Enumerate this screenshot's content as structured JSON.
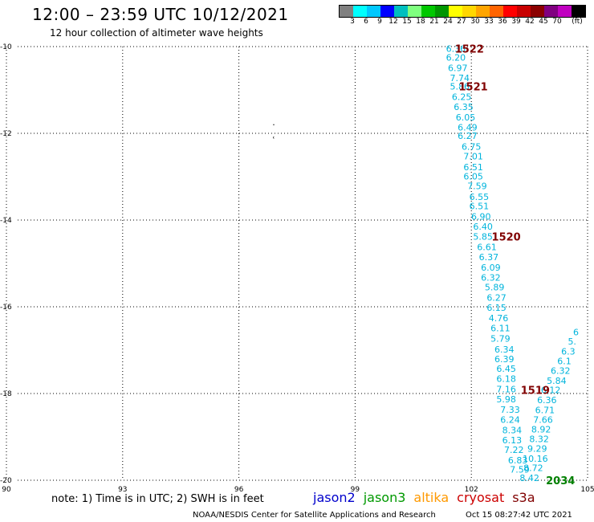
{
  "header": {
    "title": "12:00 – 23:59 UTC 10/12/2021",
    "subtitle": "12 hour collection of altimeter wave heights"
  },
  "colorbar": {
    "colors": [
      "#808080",
      "#00ffff",
      "#00c8ff",
      "#0000ff",
      "#00bfbf",
      "#7fff7f",
      "#00c800",
      "#009600",
      "#ffff00",
      "#ffd700",
      "#ffa500",
      "#ff6400",
      "#ff0000",
      "#c80000",
      "#8b0000",
      "#800080",
      "#c000c0",
      "#000000"
    ],
    "labels": [
      "3",
      "6",
      "9",
      "12",
      "15",
      "18",
      "21",
      "24",
      "27",
      "30",
      "33",
      "36",
      "39",
      "42",
      "45",
      "70",
      "(ft)"
    ]
  },
  "footer": {
    "note": "note: 1) Time is in UTC; 2) SWH is in feet",
    "credit": "NOAA/NESDIS Center for Satellite Applications and Research",
    "timestamp": "Oct 15 08:27:42 UTC 2021"
  },
  "satellites": [
    {
      "name": "jason2",
      "color": "#0000cc"
    },
    {
      "name": "jason3",
      "color": "#009900"
    },
    {
      "name": "altika",
      "color": "#ff9900"
    },
    {
      "name": "cryosat",
      "color": "#cc0000"
    },
    {
      "name": "s3a",
      "color": "#800000"
    }
  ],
  "chart_data": {
    "type": "scatter",
    "x_ticks": [
      "90",
      "93",
      "96",
      "99",
      "102",
      "105"
    ],
    "y_ticks": [
      "-10",
      "-12",
      "-14",
      "-16",
      "-18",
      "-20"
    ],
    "xlim": [
      90,
      105
    ],
    "ylim": [
      -20,
      -10
    ],
    "grid": true,
    "tracks": [
      {
        "color": "#00b4dc",
        "points": [
          {
            "x": 101.6,
            "y": -10.05,
            "label": "6.36"
          },
          {
            "x": 101.6,
            "y": -10.25,
            "label": "6.20"
          },
          {
            "x": 101.65,
            "y": -10.49,
            "label": "6.97"
          },
          {
            "x": 101.7,
            "y": -10.72,
            "label": "7.74"
          },
          {
            "x": 101.7,
            "y": -10.92,
            "label": "5.86"
          },
          {
            "x": 101.75,
            "y": -11.16,
            "label": "6.25"
          },
          {
            "x": 101.8,
            "y": -11.39,
            "label": "6.35"
          },
          {
            "x": 101.85,
            "y": -11.63,
            "label": "6.05"
          },
          {
            "x": 101.9,
            "y": -11.86,
            "label": "6.49"
          },
          {
            "x": 101.9,
            "y": -12.06,
            "label": "6.27"
          },
          {
            "x": 102.0,
            "y": -12.31,
            "label": "6.75"
          },
          {
            "x": 102.05,
            "y": -12.53,
            "label": "7.01"
          },
          {
            "x": 102.05,
            "y": -12.78,
            "label": "6.51"
          },
          {
            "x": 102.05,
            "y": -12.99,
            "label": "6.05"
          },
          {
            "x": 102.15,
            "y": -13.21,
            "label": "7.59"
          },
          {
            "x": 102.2,
            "y": -13.46,
            "label": "6.55"
          },
          {
            "x": 102.2,
            "y": -13.68,
            "label": "6.51"
          },
          {
            "x": 102.25,
            "y": -13.92,
            "label": "6.90"
          },
          {
            "x": 102.3,
            "y": -14.15,
            "label": "6.40"
          },
          {
            "x": 102.3,
            "y": -14.38,
            "label": "5.85"
          },
          {
            "x": 102.4,
            "y": -14.62,
            "label": "6.61"
          },
          {
            "x": 102.45,
            "y": -14.85,
            "label": "6.37"
          },
          {
            "x": 102.5,
            "y": -15.09,
            "label": "6.09"
          },
          {
            "x": 102.5,
            "y": -15.32,
            "label": "6.32"
          },
          {
            "x": 102.6,
            "y": -15.55,
            "label": "5.89"
          },
          {
            "x": 102.65,
            "y": -15.79,
            "label": "6.27"
          },
          {
            "x": 102.65,
            "y": -16.02,
            "label": "6.15"
          },
          {
            "x": 102.7,
            "y": -16.26,
            "label": "4.76"
          },
          {
            "x": 102.75,
            "y": -16.49,
            "label": "6.11"
          },
          {
            "x": 102.75,
            "y": -16.73,
            "label": "5.79"
          },
          {
            "x": 102.85,
            "y": -16.98,
            "label": "6.34"
          },
          {
            "x": 102.85,
            "y": -17.2,
            "label": "6.39"
          },
          {
            "x": 102.9,
            "y": -17.43,
            "label": "6.45"
          },
          {
            "x": 102.9,
            "y": -17.66,
            "label": "6.18"
          },
          {
            "x": 102.9,
            "y": -17.9,
            "label": "7.16"
          },
          {
            "x": 102.9,
            "y": -18.13,
            "label": "5.98"
          },
          {
            "x": 103.0,
            "y": -18.37,
            "label": "7.33"
          },
          {
            "x": 103.0,
            "y": -18.6,
            "label": "6.24"
          },
          {
            "x": 103.05,
            "y": -18.84,
            "label": "8.34"
          },
          {
            "x": 103.05,
            "y": -19.07,
            "label": "6.13"
          },
          {
            "x": 103.1,
            "y": -19.3,
            "label": "7.22"
          },
          {
            "x": 103.2,
            "y": -19.54,
            "label": "6.83"
          },
          {
            "x": 103.25,
            "y": -19.75,
            "label": "7.59"
          },
          {
            "x": 103.5,
            "y": -19.94,
            "label": "8.42"
          }
        ]
      },
      {
        "color": "#00b4dc",
        "points": [
          {
            "x": 103.6,
            "y": -19.71,
            "label": "8.72"
          },
          {
            "x": 103.65,
            "y": -19.5,
            "label": "10.16"
          },
          {
            "x": 103.7,
            "y": -19.27,
            "label": "9.29"
          },
          {
            "x": 103.75,
            "y": -19.05,
            "label": "8.32"
          },
          {
            "x": 103.8,
            "y": -18.82,
            "label": "8.92"
          },
          {
            "x": 103.85,
            "y": -18.6,
            "label": "7.66"
          },
          {
            "x": 103.9,
            "y": -18.38,
            "label": "6.71"
          },
          {
            "x": 103.95,
            "y": -18.15,
            "label": "6.36"
          },
          {
            "x": 104.05,
            "y": -17.92,
            "label": "6.12"
          },
          {
            "x": 104.2,
            "y": -17.7,
            "label": "5.84"
          },
          {
            "x": 104.3,
            "y": -17.47,
            "label": "6.32"
          },
          {
            "x": 104.4,
            "y": -17.25,
            "label": "6.1"
          },
          {
            "x": 104.5,
            "y": -17.03,
            "label": "6.3"
          },
          {
            "x": 104.6,
            "y": -16.8,
            "label": "5."
          },
          {
            "x": 104.7,
            "y": -16.58,
            "label": "6"
          }
        ]
      }
    ],
    "time_labels": [
      {
        "x": 101.95,
        "y": -10.05,
        "label": "1522",
        "color": "#800000"
      },
      {
        "x": 102.05,
        "y": -10.92,
        "label": "1521",
        "color": "#800000"
      },
      {
        "x": 102.9,
        "y": -14.38,
        "label": "1520",
        "color": "#800000"
      },
      {
        "x": 103.65,
        "y": -17.92,
        "label": "1519",
        "color": "#800000"
      },
      {
        "x": 104.3,
        "y": -20.0,
        "label": "2034",
        "color": "#008000"
      }
    ],
    "misc_marks": [
      {
        "x": 96.9,
        "y": -11.8,
        "label": "·",
        "color": "#000000"
      },
      {
        "x": 96.9,
        "y": -12.15,
        "label": "ʿ",
        "color": "#000000"
      }
    ]
  }
}
